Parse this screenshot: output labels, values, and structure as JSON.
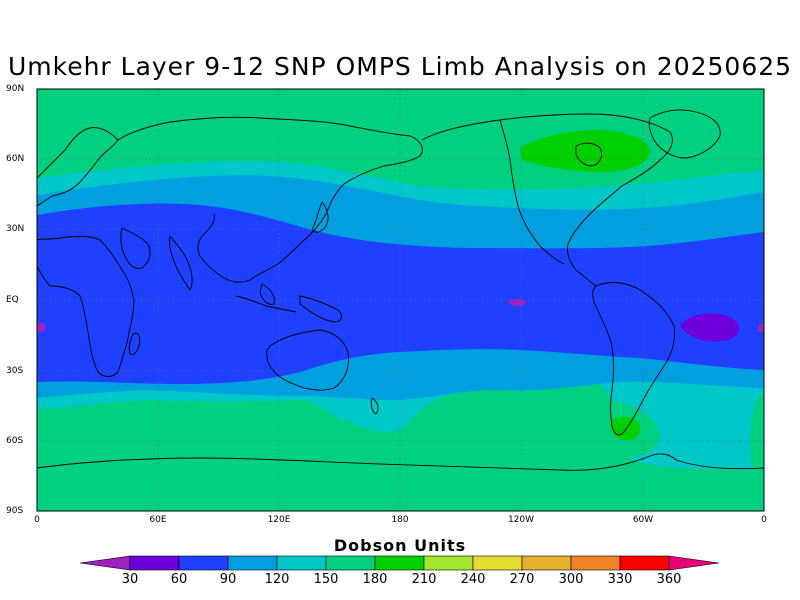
{
  "title": "Umkehr Layer 9-12 SNP OMPS Limb Analysis on 20250625",
  "lat_ticks": [
    "90N",
    "60N",
    "30N",
    "EQ",
    "30S",
    "60S",
    "90S"
  ],
  "lon_ticks": [
    "0",
    "60E",
    "120E",
    "180",
    "120W",
    "60W",
    "0"
  ],
  "legend": {
    "title": "Dobson Units",
    "levels": [
      "30",
      "60",
      "90",
      "120",
      "150",
      "180",
      "210",
      "240",
      "270",
      "300",
      "330",
      "360"
    ],
    "colors": [
      "#a020c0",
      "#6e00dc",
      "#2040ff",
      "#00a0e0",
      "#00c8c8",
      "#00d080",
      "#00d000",
      "#a0e632",
      "#e6dc32",
      "#e6af2d",
      "#f08228",
      "#fa0000",
      "#e6007a"
    ]
  },
  "field_colors": {
    "ocean_60_90": "#2040ff",
    "band_90_120": "#00a0e0",
    "band_120_150": "#00c8c8",
    "band_150_180": "#00d080",
    "high_180_210": "#00d000",
    "low_30_60": "#6e00dc",
    "low_0_30": "#a020c0"
  }
}
